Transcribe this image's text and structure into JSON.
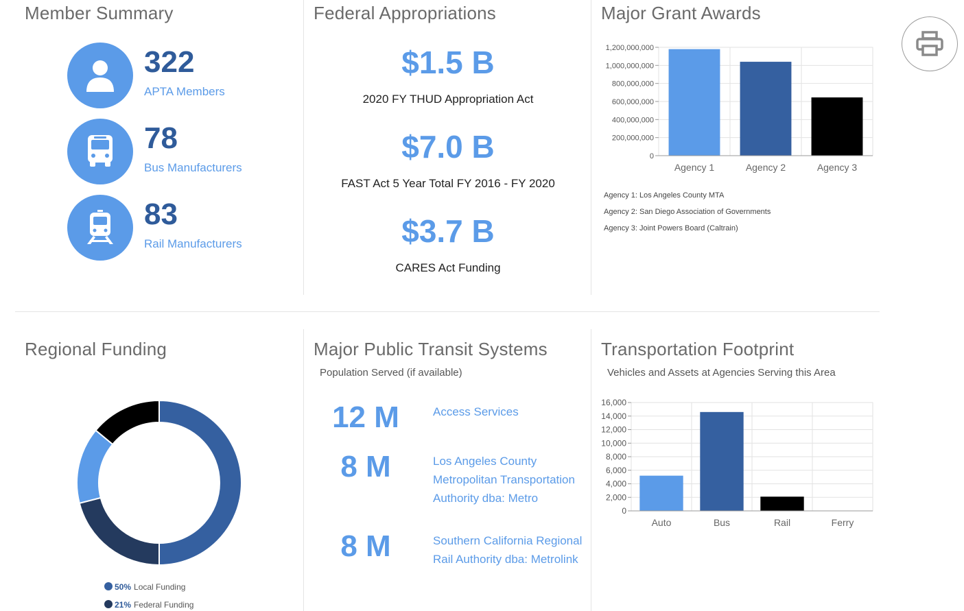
{
  "member_summary": {
    "title": "Member Summary",
    "rows": [
      {
        "count": "322",
        "label": "APTA Members",
        "icon": "person-icon"
      },
      {
        "count": "78",
        "label": "Bus Manufacturers",
        "icon": "bus-icon"
      },
      {
        "count": "83",
        "label": "Rail Manufacturers",
        "icon": "train-icon"
      }
    ]
  },
  "federal_appropriations": {
    "title": "Federal Appropriations",
    "items": [
      {
        "value": "$1.5 B",
        "label": "2020 FY THUD Appropriation Act"
      },
      {
        "value": "$7.0 B",
        "label": "FAST Act 5 Year Total FY 2016 - FY 2020"
      },
      {
        "value": "$3.7 B",
        "label": "CARES Act Funding"
      }
    ]
  },
  "major_grant_awards": {
    "title": "Major Grant Awards",
    "notes": [
      "Agency 1: Los Angeles County MTA",
      "Agency 2: San Diego Association of Governments",
      "Agency 3: Joint Powers Board (Caltrain)"
    ]
  },
  "regional_funding": {
    "title": "Regional Funding",
    "legend": [
      {
        "pct": "50%",
        "label": "Local Funding"
      },
      {
        "pct": "21%",
        "label": "Federal Funding"
      }
    ]
  },
  "major_transit_systems": {
    "title": "Major Public Transit Systems",
    "subtitle": "Population Served (if available)",
    "systems": [
      {
        "population": "12 M",
        "name": "Access Services"
      },
      {
        "population": "8 M",
        "name": "Los Angeles County Metropolitan Transportation Authority dba: Metro"
      },
      {
        "population": "8 M",
        "name": "Southern California Regional Rail Authority dba: Metrolink"
      }
    ]
  },
  "transportation_footprint": {
    "title": "Transportation Footprint",
    "subtitle": "Vehicles and Assets at Agencies Serving this Area"
  },
  "print_button": {
    "icon": "printer-icon"
  },
  "colors": {
    "accent_light": "#5b9be8",
    "accent_dark": "#3560a0",
    "navy": "#243a5e",
    "black": "#000000"
  },
  "chart_data": [
    {
      "id": "grant",
      "type": "bar",
      "categories": [
        "Agency 1",
        "Agency 2",
        "Agency 3"
      ],
      "values": [
        1180000000,
        1040000000,
        645000000
      ],
      "colors": [
        "#5b9be8",
        "#3560a0",
        "#000000"
      ],
      "ylim": [
        0,
        1200000000
      ],
      "yticks": [
        0,
        200000000,
        400000000,
        600000000,
        800000000,
        1000000000,
        1200000000
      ],
      "ytick_labels": [
        "0",
        "200,000,000",
        "400,000,000",
        "600,000,000",
        "800,000,000",
        "1,000,000,000",
        "1,200,000,000"
      ],
      "grid": true
    },
    {
      "id": "footprint",
      "type": "bar",
      "categories": [
        "Auto",
        "Bus",
        "Rail",
        "Ferry"
      ],
      "values": [
        5200,
        14600,
        2100,
        0
      ],
      "colors": [
        "#5b9be8",
        "#3560a0",
        "#000000",
        "#000000"
      ],
      "ylim": [
        0,
        16000
      ],
      "yticks": [
        0,
        2000,
        4000,
        6000,
        8000,
        10000,
        12000,
        14000,
        16000
      ],
      "ytick_labels": [
        "0",
        "2,000",
        "4,000",
        "6,000",
        "8,000",
        "10,000",
        "12,000",
        "14,000",
        "16,000"
      ],
      "grid": true
    },
    {
      "id": "funding",
      "type": "pie",
      "donut": true,
      "slices": [
        {
          "label": "Local Funding",
          "value": 50,
          "color": "#3560a0"
        },
        {
          "label": "Federal Funding",
          "value": 21,
          "color": "#243a5e"
        },
        {
          "label": "",
          "value": 15,
          "color": "#5b9be8"
        },
        {
          "label": "",
          "value": 14,
          "color": "#000000"
        }
      ]
    }
  ]
}
